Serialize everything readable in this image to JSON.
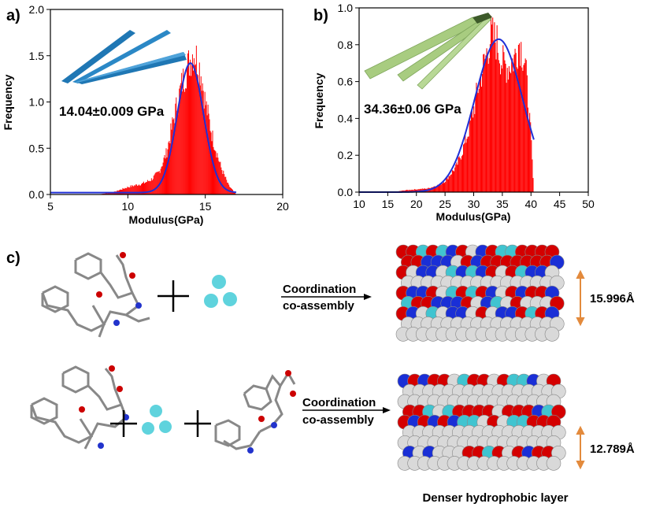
{
  "panels": {
    "a": "a)",
    "b": "b)",
    "c": "c)"
  },
  "colors": {
    "bar": "#ff0000",
    "fit": "#1f2fd6",
    "ribbon_a": "#1f77b4",
    "ribbon_b": "#a8cc80",
    "ion": "#5fd3dd",
    "arrow_dim": "#e38a3c"
  },
  "chart_data": [
    {
      "type": "bar",
      "panel": "a",
      "ylabel": "Frequency",
      "xlabel": "Modulus(GPa)",
      "annotation": "14.04±0.009 GPa",
      "xlim": [
        5,
        20
      ],
      "ylim": [
        0,
        2.0
      ],
      "xticks": [
        "5",
        "10",
        "15",
        "20"
      ],
      "yticks": [
        "0.0",
        "0.5",
        "1.0",
        "1.5",
        "2.0"
      ],
      "histogram": {
        "bin_width": 0.05,
        "x": [
          8.0,
          9.0,
          9.5,
          10.0,
          10.5,
          11.0,
          11.5,
          12.0,
          12.5,
          13.0,
          13.5,
          14.0,
          14.25,
          14.5,
          14.75,
          15.0,
          15.5,
          16.0,
          16.5,
          17.0
        ],
        "y": [
          0.0,
          0.02,
          0.05,
          0.08,
          0.1,
          0.12,
          0.16,
          0.24,
          0.45,
          0.85,
          1.2,
          1.45,
          1.55,
          1.45,
          1.3,
          1.0,
          0.6,
          0.3,
          0.1,
          0.0
        ]
      },
      "fit": {
        "model": "gaussian",
        "center": 14.04,
        "sigma": 0.85,
        "amplitude": 1.4,
        "baseline": 0.02,
        "xrange": [
          5,
          17
        ]
      }
    },
    {
      "type": "bar",
      "panel": "b",
      "ylabel": "Frequency",
      "xlabel": "Modulus(GPa)",
      "annotation": "34.36±0.06 GPa",
      "xlim": [
        10,
        50
      ],
      "ylim": [
        0,
        1.0
      ],
      "xticks": [
        "10",
        "15",
        "20",
        "25",
        "30",
        "35",
        "40",
        "45",
        "50"
      ],
      "yticks": [
        "0.0",
        "0.2",
        "0.4",
        "0.6",
        "0.8",
        "1.0"
      ],
      "histogram": {
        "bin_width": 0.15,
        "x": [
          16,
          18,
          20,
          22,
          24,
          25,
          26,
          27,
          28,
          29,
          30,
          31,
          32,
          33,
          34,
          35,
          36,
          37,
          38,
          39,
          40,
          40.5
        ],
        "y": [
          0.0,
          0.01,
          0.015,
          0.02,
          0.04,
          0.06,
          0.1,
          0.14,
          0.22,
          0.32,
          0.45,
          0.6,
          0.72,
          0.85,
          0.82,
          0.7,
          0.68,
          0.72,
          0.82,
          0.7,
          0.3,
          0.0
        ]
      },
      "fit": {
        "model": "gaussian",
        "center": 34.36,
        "sigma": 4.2,
        "amplitude": 0.83,
        "baseline": 0.0,
        "xrange": [
          10,
          40.5
        ]
      }
    }
  ],
  "scheme": {
    "row1": {
      "label_line1": "Coordination",
      "label_line2": "co-assembly",
      "spacing": "15.996Å"
    },
    "row2": {
      "label_line1": "Coordination",
      "label_line2": "co-assembly",
      "spacing": "12.789Å",
      "caption": "Denser hydrophobic layer"
    }
  }
}
